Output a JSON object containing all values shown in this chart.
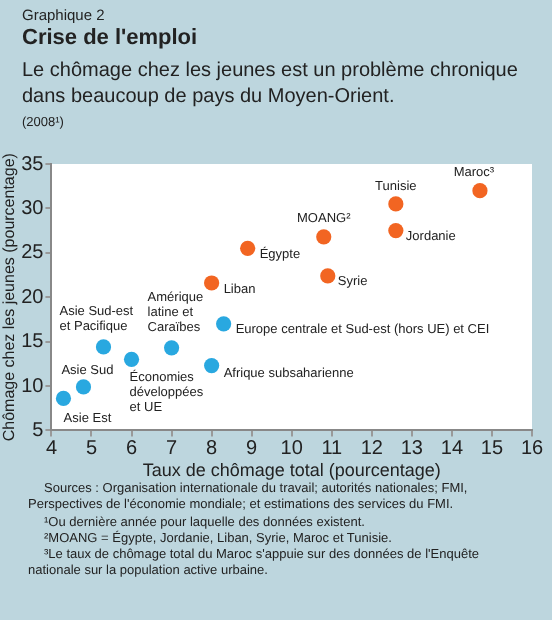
{
  "chart_data": {
    "type": "scatter",
    "title": "Crise de l'emploi",
    "subtitle": "Le chômage chez les jeunes est un problème chronique dans beaucoup de pays du Moyen-Orient.",
    "xlabel": "Taux de chômage total (pourcentage)",
    "ylabel": "Chômage chez les jeunes (pourcentage)",
    "series": [
      {
        "color": "#29a8e0",
        "x": [
          4.3,
          4.8,
          5.3,
          6.0,
          7.0,
          8.0,
          8.3
        ],
        "values": [
          8.6,
          9.9,
          14.4,
          13.0,
          14.3,
          12.3,
          17.0
        ]
      },
      {
        "color": "#f26522",
        "x": [
          8.0,
          8.9,
          10.8,
          10.9,
          12.6,
          12.6,
          14.7
        ],
        "values": [
          21.6,
          25.5,
          26.8,
          22.4,
          30.5,
          27.5,
          32.0
        ]
      }
    ],
    "xlim": [
      4,
      16
    ],
    "xticks": [
      4,
      5,
      6,
      7,
      8,
      9,
      10,
      11,
      12,
      13,
      14,
      15,
      16
    ],
    "ylim": [
      5,
      35
    ],
    "yticks": [
      5,
      10,
      15,
      20,
      25,
      30,
      35
    ],
    "grid": false,
    "legend": false,
    "marker": "circle",
    "annotations": [
      "Graphique 2",
      "(2008¹)",
      "Sources : Organisation internationale du travail; autorités nationales; FMI, Perspectives de l'économie mondiale; et estimations des services du FMI.",
      "¹Ou dernière année pour laquelle des données existent.",
      "²MOANG = Égypte, Jordanie, Liban, Syrie, Maroc et Tunisie.",
      "³Le taux de chômage total du Maroc s'appuie sur des données de l'Enquête nationale sur la population active urbaine.",
      {
        "text": "Asie Est",
        "x": 4.3,
        "y": 8.6
      },
      {
        "text": "Asie Sud",
        "x": 4.8,
        "y": 9.9
      },
      {
        "text": "Asie Sud-est\net Pacifique",
        "x": 5.3,
        "y": 14.4
      },
      {
        "text": "Économies\ndéveloppées\net UE",
        "x": 6.0,
        "y": 13.0
      },
      {
        "text": "Amérique\nlatine et\nCaraïbes",
        "x": 7.0,
        "y": 14.3
      },
      {
        "text": "Afrique subsaharienne",
        "x": 8.0,
        "y": 12.3
      },
      {
        "text": "Europe centrale et Sud-est (hors UE) et CEI",
        "x": 8.3,
        "y": 17.0
      },
      {
        "text": "Liban",
        "x": 8.0,
        "y": 21.6
      },
      {
        "text": "Égypte",
        "x": 8.9,
        "y": 25.5
      },
      {
        "text": "MOANG²",
        "x": 10.8,
        "y": 26.8
      },
      {
        "text": "Syrie",
        "x": 10.9,
        "y": 22.4
      },
      {
        "text": "Tunisie",
        "x": 12.6,
        "y": 30.5
      },
      {
        "text": "Jordanie",
        "x": 12.6,
        "y": 27.5
      },
      {
        "text": "Maroc³",
        "x": 14.7,
        "y": 32.0
      }
    ]
  }
}
